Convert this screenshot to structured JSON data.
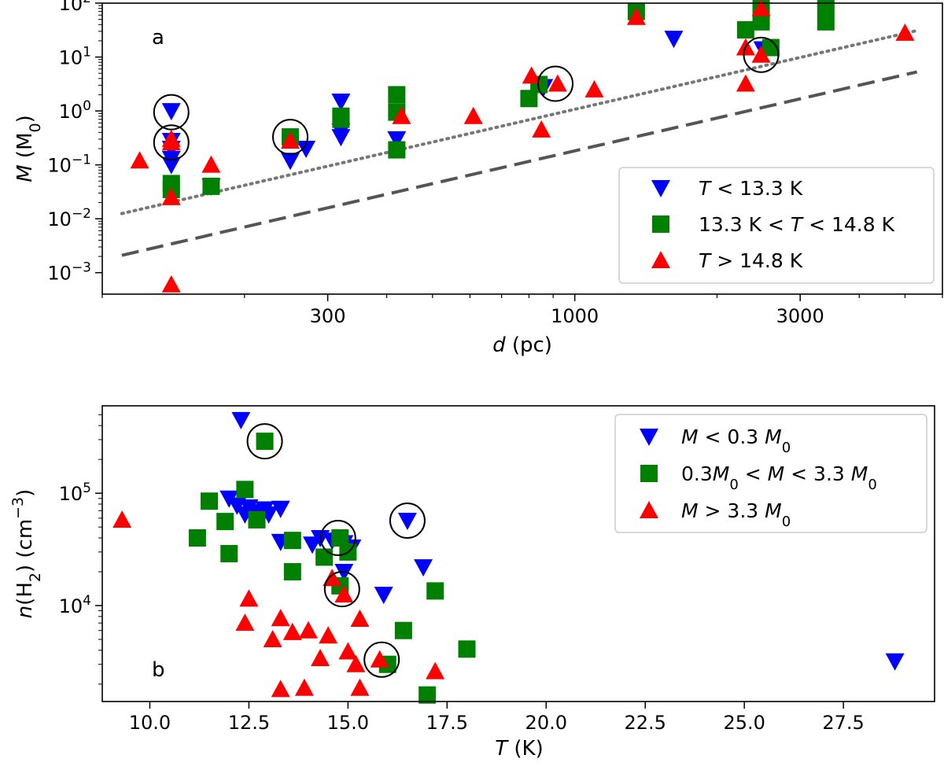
{
  "chart_data": [
    {
      "id": "panel_a",
      "type": "scatter",
      "panel_label": "a",
      "xlabel": "d (pc)",
      "ylabel": "M (M0)",
      "xscale": "log",
      "yscale": "log",
      "xlim": [
        100,
        6000
      ],
      "ylim": [
        0.0004,
        100
      ],
      "xticks": [
        {
          "value": 300,
          "label": "300"
        },
        {
          "value": 1000,
          "label": "1000"
        },
        {
          "value": 3000,
          "label": "3000"
        }
      ],
      "yticks": [
        {
          "value": 0.001,
          "base": "10",
          "exp": "−3"
        },
        {
          "value": 0.01,
          "base": "10",
          "exp": "−2"
        },
        {
          "value": 0.1,
          "base": "10",
          "exp": "−1"
        },
        {
          "value": 1,
          "base": "10",
          "exp": "0"
        },
        {
          "value": 10,
          "base": "10",
          "exp": "1"
        },
        {
          "value": 100,
          "base": "10",
          "exp": "2"
        }
      ],
      "legend_position": "lower-right",
      "series": [
        {
          "name": "T < 13.3 K",
          "marker": "triangle-down",
          "color": "#0000ff",
          "points": [
            [
              140,
              1.0
            ],
            [
              140,
              0.28
            ],
            [
              140,
              0.2
            ],
            [
              140,
              0.13
            ],
            [
              140,
              0.1
            ],
            [
              170,
              0.04
            ],
            [
              250,
              0.12
            ],
            [
              270,
              0.2
            ],
            [
              320,
              1.5
            ],
            [
              320,
              0.42
            ],
            [
              320,
              0.33
            ],
            [
              420,
              0.3
            ],
            [
              860,
              2.8
            ],
            [
              1620,
              22
            ],
            [
              2500,
              14
            ]
          ]
        },
        {
          "name": "13.3 K < T < 14.8 K",
          "marker": "square",
          "color": "#008000",
          "points": [
            [
              140,
              0.045
            ],
            [
              140,
              0.035
            ],
            [
              170,
              0.04
            ],
            [
              250,
              0.33
            ],
            [
              320,
              0.8
            ],
            [
              320,
              0.7
            ],
            [
              420,
              2.0
            ],
            [
              420,
              0.95
            ],
            [
              420,
              0.19
            ],
            [
              800,
              1.7
            ],
            [
              840,
              3.1
            ],
            [
              1350,
              70
            ],
            [
              2300,
              32
            ],
            [
              2480,
              90
            ],
            [
              2480,
              60
            ],
            [
              2480,
              45
            ],
            [
              2600,
              15
            ],
            [
              3400,
              90
            ],
            [
              3400,
              45
            ]
          ]
        },
        {
          "name": "T > 14.8 K",
          "marker": "triangle-up",
          "color": "#ff0000",
          "points": [
            [
              140,
              0.0006
            ],
            [
              140,
              0.025
            ],
            [
              140,
              0.3
            ],
            [
              140,
              0.26
            ],
            [
              120,
              0.12
            ],
            [
              170,
              0.1
            ],
            [
              250,
              0.28
            ],
            [
              430,
              0.8
            ],
            [
              610,
              0.8
            ],
            [
              810,
              4.5
            ],
            [
              850,
              0.45
            ],
            [
              920,
              3.2
            ],
            [
              1100,
              2.5
            ],
            [
              1350,
              55
            ],
            [
              2300,
              15
            ],
            [
              2300,
              3.2
            ],
            [
              2480,
              80
            ],
            [
              2480,
              11
            ],
            [
              5000,
              28
            ]
          ]
        }
      ],
      "circled_points": [
        [
          140,
          0.95
        ],
        [
          140,
          0.26
        ],
        [
          250,
          0.33
        ],
        [
          910,
          3.2
        ],
        [
          2480,
          11
        ]
      ],
      "reference_lines": [
        {
          "style": "dotted",
          "color": "#777777",
          "points": [
            [
              110,
              0.0125
            ],
            [
              5300,
              31
            ]
          ]
        },
        {
          "style": "dashed",
          "color": "#555555",
          "points": [
            [
              110,
              0.0021
            ],
            [
              5300,
              5.3
            ]
          ]
        }
      ]
    },
    {
      "id": "panel_b",
      "type": "scatter",
      "panel_label": "b",
      "xlabel": "T (K)",
      "ylabel": "n(H2) (cm−3)",
      "xscale": "linear",
      "yscale": "log",
      "xlim": [
        8.8,
        29.8
      ],
      "ylim": [
        1400,
        600000
      ],
      "xticks": [
        {
          "value": 10,
          "label": "10.0"
        },
        {
          "value": 12.5,
          "label": "12.5"
        },
        {
          "value": 15,
          "label": "15.0"
        },
        {
          "value": 17.5,
          "label": "17.5"
        },
        {
          "value": 20,
          "label": "20.0"
        },
        {
          "value": 22.5,
          "label": "22.5"
        },
        {
          "value": 25,
          "label": "25.0"
        },
        {
          "value": 27.5,
          "label": "27.5"
        }
      ],
      "yticks": [
        {
          "value": 10000,
          "base": "10",
          "exp": "4"
        },
        {
          "value": 100000,
          "base": "10",
          "exp": "5"
        }
      ],
      "legend_position": "upper-right",
      "series": [
        {
          "name": "M < 0.3 M0",
          "marker": "triangle-down",
          "color": "#0000ff",
          "points": [
            [
              12.3,
              450000
            ],
            [
              12.0,
              90000
            ],
            [
              12.2,
              78000
            ],
            [
              12.4,
              65000
            ],
            [
              12.5,
              75000
            ],
            [
              12.7,
              68000
            ],
            [
              12.9,
              72000
            ],
            [
              13.0,
              65000
            ],
            [
              13.3,
              73000
            ],
            [
              13.3,
              37000
            ],
            [
              14.1,
              35000
            ],
            [
              14.3,
              40000
            ],
            [
              14.6,
              38000
            ],
            [
              14.9,
              36000
            ],
            [
              15.1,
              33000
            ],
            [
              14.9,
              20000
            ],
            [
              15.9,
              12500
            ],
            [
              16.5,
              57000
            ],
            [
              16.9,
              22000
            ],
            [
              28.8,
              3200
            ]
          ]
        },
        {
          "name": "0.3M0 < M < 3.3 M0",
          "marker": "square",
          "color": "#008000",
          "points": [
            [
              11.2,
              40000
            ],
            [
              11.5,
              85000
            ],
            [
              11.9,
              56000
            ],
            [
              12.0,
              29000
            ],
            [
              12.4,
              108000
            ],
            [
              12.7,
              58000
            ],
            [
              12.9,
              290000
            ],
            [
              13.6,
              38000
            ],
            [
              13.6,
              20000
            ],
            [
              14.4,
              27000
            ],
            [
              14.8,
              40000
            ],
            [
              14.8,
              15000
            ],
            [
              15.0,
              30000
            ],
            [
              16.0,
              3000
            ],
            [
              16.4,
              6000
            ],
            [
              17.0,
              1600
            ],
            [
              17.2,
              13500
            ],
            [
              18.0,
              4100
            ]
          ]
        },
        {
          "name": "M > 3.3 M0",
          "marker": "triangle-up",
          "color": "#ff0000",
          "points": [
            [
              9.3,
              58000
            ],
            [
              12.4,
              7000
            ],
            [
              12.5,
              11500
            ],
            [
              13.1,
              5000
            ],
            [
              13.3,
              7700
            ],
            [
              13.3,
              1800
            ],
            [
              13.6,
              5800
            ],
            [
              13.9,
              1850
            ],
            [
              14.0,
              6000
            ],
            [
              14.3,
              3400
            ],
            [
              14.5,
              5400
            ],
            [
              14.6,
              17500
            ],
            [
              14.9,
              12500
            ],
            [
              15.0,
              3900
            ],
            [
              15.2,
              3000
            ],
            [
              15.3,
              1850
            ],
            [
              15.3,
              7600
            ],
            [
              15.8,
              3300
            ],
            [
              17.2,
              2600
            ]
          ]
        }
      ],
      "circled_points": [
        [
          12.9,
          290000
        ],
        [
          14.75,
          40000
        ],
        [
          14.85,
          14000
        ],
        [
          16.5,
          57000
        ],
        [
          15.85,
          3300
        ]
      ]
    }
  ]
}
